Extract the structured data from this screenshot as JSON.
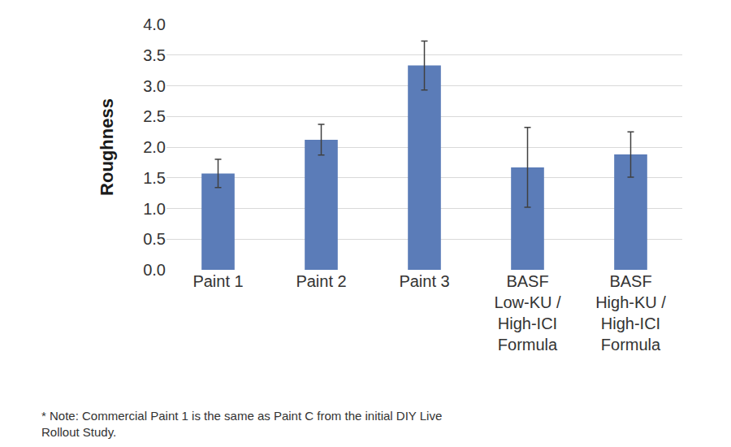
{
  "chart_data": {
    "type": "bar",
    "y_label": "Roughness",
    "categories": [
      "Paint 1",
      "Paint 2",
      "Paint 3",
      "BASF\nLow-KU /\nHigh-ICI\nFormula",
      "BASF\nHigh-KU /\nHigh-ICI\nFormula"
    ],
    "values": [
      1.57,
      2.12,
      3.33,
      1.67,
      1.88
    ],
    "errors": [
      0.23,
      0.25,
      0.4,
      0.65,
      0.37
    ],
    "color": "#5b7cb8",
    "ylim": [
      0,
      4
    ],
    "yticks": [
      {
        "value": 0,
        "label": "0.0"
      },
      0.5,
      {
        "value": 1,
        "label": "1.0"
      },
      1.5,
      {
        "value": 2,
        "label": "2.0"
      },
      2.5,
      {
        "value": 3,
        "label": "3.0"
      },
      3.5,
      {
        "value": 4,
        "label": "4.0"
      }
    ],
    "grid": true,
    "annotations": [
      "* Note: Commercial Paint 1 is the same as Paint C from the initial DIY Live\nRollout Study."
    ]
  }
}
